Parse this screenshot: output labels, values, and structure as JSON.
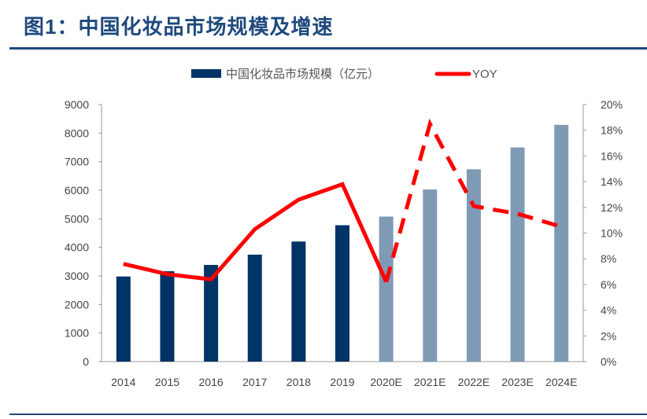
{
  "title": "图1：中国化妆品市场规模及增速",
  "chart_data": {
    "type": "bar+line",
    "title": "图1：中国化妆品市场规模及增速",
    "categories": [
      "2014",
      "2015",
      "2016",
      "2017",
      "2018",
      "2019",
      "2020E",
      "2021E",
      "2022E",
      "2023E",
      "2024E"
    ],
    "series": [
      {
        "name": "中国化妆品市场规模（亿元）",
        "type": "bar",
        "axis": "left",
        "values": [
          2980,
          3165,
          3385,
          3744,
          4204,
          4775,
          5078,
          6026,
          6734,
          7498,
          8289
        ],
        "color_actual": "#003366",
        "color_forecast": "#7f9ab4"
      },
      {
        "name": "YOY",
        "type": "line",
        "axis": "right",
        "unit": "%",
        "values": [
          7.6,
          6.8,
          6.4,
          10.3,
          12.6,
          13.8,
          6.2,
          18.5,
          12.1,
          11.5,
          10.5
        ],
        "color": "#ff0000",
        "style_forecast": "dashed"
      }
    ],
    "left_axis": {
      "min": 0,
      "max": 9000,
      "ticks": [
        "0",
        "1000",
        "2000",
        "3000",
        "4000",
        "5000",
        "6000",
        "7000",
        "8000",
        "9000"
      ]
    },
    "right_axis": {
      "min": 0,
      "max": 20,
      "ticks": [
        "0%",
        "2%",
        "4%",
        "6%",
        "8%",
        "10%",
        "12%",
        "14%",
        "16%",
        "18%",
        "20%"
      ]
    },
    "legend_placement": "top",
    "grid": false
  }
}
